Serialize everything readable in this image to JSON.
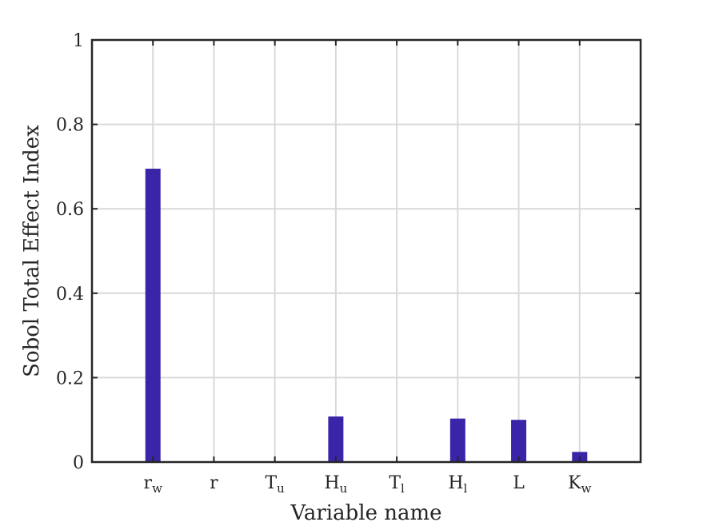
{
  "chart_data": {
    "type": "bar",
    "title": "",
    "xlabel": "Variable name",
    "ylabel": "Sobol Total Effect Index",
    "categories": [
      {
        "base": "r",
        "sub": "w"
      },
      {
        "base": "r",
        "sub": ""
      },
      {
        "base": "T",
        "sub": "u"
      },
      {
        "base": "H",
        "sub": "u"
      },
      {
        "base": "T",
        "sub": "l"
      },
      {
        "base": "H",
        "sub": "l"
      },
      {
        "base": "L",
        "sub": ""
      },
      {
        "base": "K",
        "sub": "w"
      }
    ],
    "values": [
      0.695,
      0.0,
      0.0,
      0.108,
      0.0,
      0.103,
      0.1,
      0.024
    ],
    "ylim": [
      0,
      1
    ],
    "xlim": [
      0,
      9
    ],
    "yticks": [
      0,
      0.2,
      0.4,
      0.6,
      0.8,
      1
    ],
    "ytick_labels": [
      "0",
      "0.2",
      "0.4",
      "0.6",
      "0.8",
      "1"
    ],
    "grid": true,
    "bar_color": "#3a24a8",
    "grid_color": "#d9d9d9",
    "axis_color": "#262626"
  }
}
